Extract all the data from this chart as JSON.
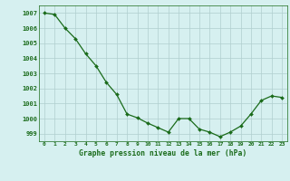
{
  "x": [
    0,
    1,
    2,
    3,
    4,
    5,
    6,
    7,
    8,
    9,
    10,
    11,
    12,
    13,
    14,
    15,
    16,
    17,
    18,
    19,
    20,
    21,
    22,
    23
  ],
  "y": [
    1007.0,
    1006.9,
    1006.0,
    1005.3,
    1004.3,
    1003.5,
    1002.4,
    1001.6,
    1000.3,
    1000.05,
    999.7,
    999.4,
    999.1,
    1000.0,
    1000.0,
    999.3,
    999.1,
    998.8,
    999.1,
    999.5,
    1000.3,
    1001.2,
    1001.5,
    1001.4
  ],
  "line_color": "#1a6b1a",
  "marker_color": "#1a6b1a",
  "bg_color": "#d6f0f0",
  "grid_color": "#b0cece",
  "text_color": "#1a6b1a",
  "xlabel": "Graphe pression niveau de la mer (hPa)",
  "ylim_min": 998.5,
  "ylim_max": 1007.5,
  "yticks": [
    999,
    1000,
    1001,
    1002,
    1003,
    1004,
    1005,
    1006,
    1007
  ],
  "xticks": [
    0,
    1,
    2,
    3,
    4,
    5,
    6,
    7,
    8,
    9,
    10,
    11,
    12,
    13,
    14,
    15,
    16,
    17,
    18,
    19,
    20,
    21,
    22,
    23
  ]
}
